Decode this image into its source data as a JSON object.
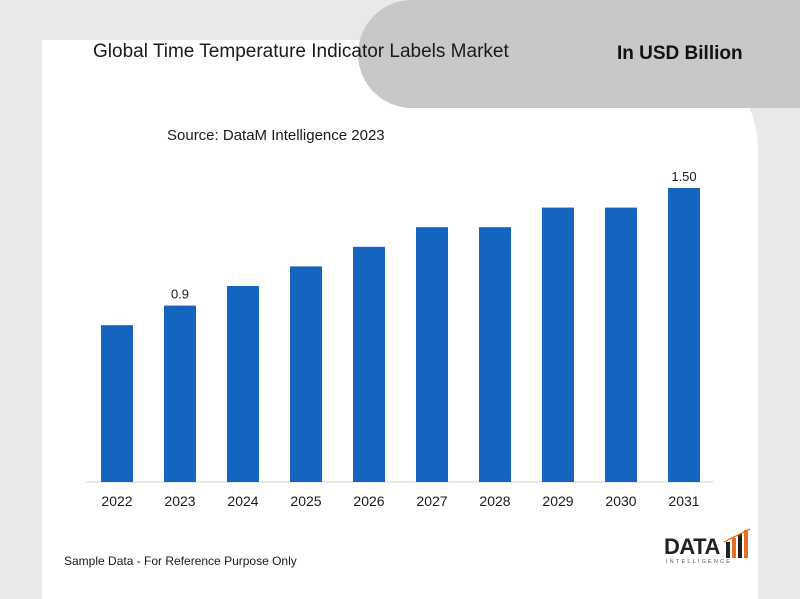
{
  "header": {
    "title": "Global Time Temperature Indicator Labels Market",
    "unit": "In USD Billion"
  },
  "source": "Source: DataM Intelligence 2023",
  "footnote": "Sample Data - For Reference Purpose Only",
  "logo": {
    "name": "DATA",
    "tagline": "INTELLIGENCE"
  },
  "colors": {
    "bar": "#1565c0",
    "banner": "#c6c8ca",
    "accent": "#e8701a"
  },
  "chart_data": {
    "type": "bar",
    "categories": [
      "2022",
      "2023",
      "2024",
      "2025",
      "2026",
      "2027",
      "2028",
      "2029",
      "2030",
      "2031"
    ],
    "values": [
      0.8,
      0.9,
      1.0,
      1.1,
      1.2,
      1.3,
      1.3,
      1.4,
      1.4,
      1.5
    ],
    "data_labels": [
      "",
      "0.9",
      "",
      "",
      "",
      "",
      "",
      "",
      "",
      "1.50"
    ],
    "title": "Global Time Temperature Indicator Labels Market",
    "subtitle": "Source: DataM Intelligence 2023",
    "ylabel": "",
    "xlabel": "",
    "ylim": [
      0,
      1.5
    ],
    "grid": false,
    "legend": "none"
  }
}
